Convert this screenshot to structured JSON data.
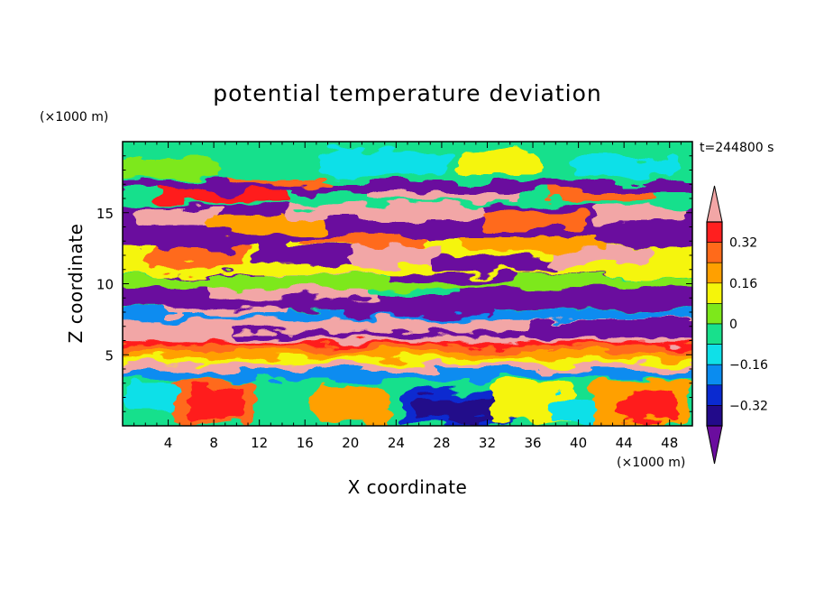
{
  "chart_data": {
    "type": "heatmap",
    "title": "potential temperature deviation",
    "xlabel": "X coordinate",
    "ylabel": "Z coordinate",
    "x_unit": "(×1000 m)",
    "y_unit": "(×1000 m)",
    "time_label": "t=244800 s",
    "xlim": [
      0,
      50
    ],
    "ylim": [
      0,
      20
    ],
    "x_ticks": [
      4,
      8,
      12,
      16,
      20,
      24,
      28,
      32,
      36,
      40,
      44,
      48
    ],
    "x_tick_labels": [
      "4",
      "8",
      "12",
      "16",
      "20",
      "24",
      "28",
      "32",
      "36",
      "40",
      "44",
      "48"
    ],
    "y_ticks": [
      5,
      10,
      15
    ],
    "y_tick_labels": [
      "5",
      "10",
      "15"
    ],
    "colorbar": {
      "levels": [
        -0.4,
        -0.32,
        -0.24,
        -0.16,
        -0.08,
        0,
        0.08,
        0.16,
        0.24,
        0.32,
        0.4
      ],
      "tick_values": [
        0.32,
        0.16,
        0,
        -0.16,
        -0.32
      ],
      "tick_labels": [
        "0.32",
        "0.16",
        "0",
        "−0.16",
        "−0.32"
      ],
      "colors": [
        "#6a0d9e",
        "#220a8a",
        "#0a2ad0",
        "#0a8cf0",
        "#0fe0e8",
        "#18e08c",
        "#7de81b",
        "#f5f50a",
        "#ffa000",
        "#ff6a1a",
        "#ff1f1f",
        "#f2a6a6"
      ],
      "extend": "both"
    },
    "bands": [
      {
        "z": 1.5,
        "character": "turbulent mixed layer with warm plumes near x=8, 20, 44 and cold region near x=28"
      },
      {
        "z": 4.3,
        "character": "thin pink (warm) layer"
      },
      {
        "z": 5.2,
        "character": "orange / yellow stable layer"
      },
      {
        "z": 5.8,
        "character": "thin red layer"
      },
      {
        "z": 7.0,
        "character": "pink / purple interleaved layer"
      },
      {
        "z": 9.5,
        "character": "purple cold layer with pink patches between x=8 and x=22"
      },
      {
        "z": 12.5,
        "character": "wavy pink / purple / orange structures"
      },
      {
        "z": 15.5,
        "character": "purple cold layer with pink lenses"
      },
      {
        "z": 18.5,
        "character": "green near-neutral upper region"
      }
    ]
  }
}
